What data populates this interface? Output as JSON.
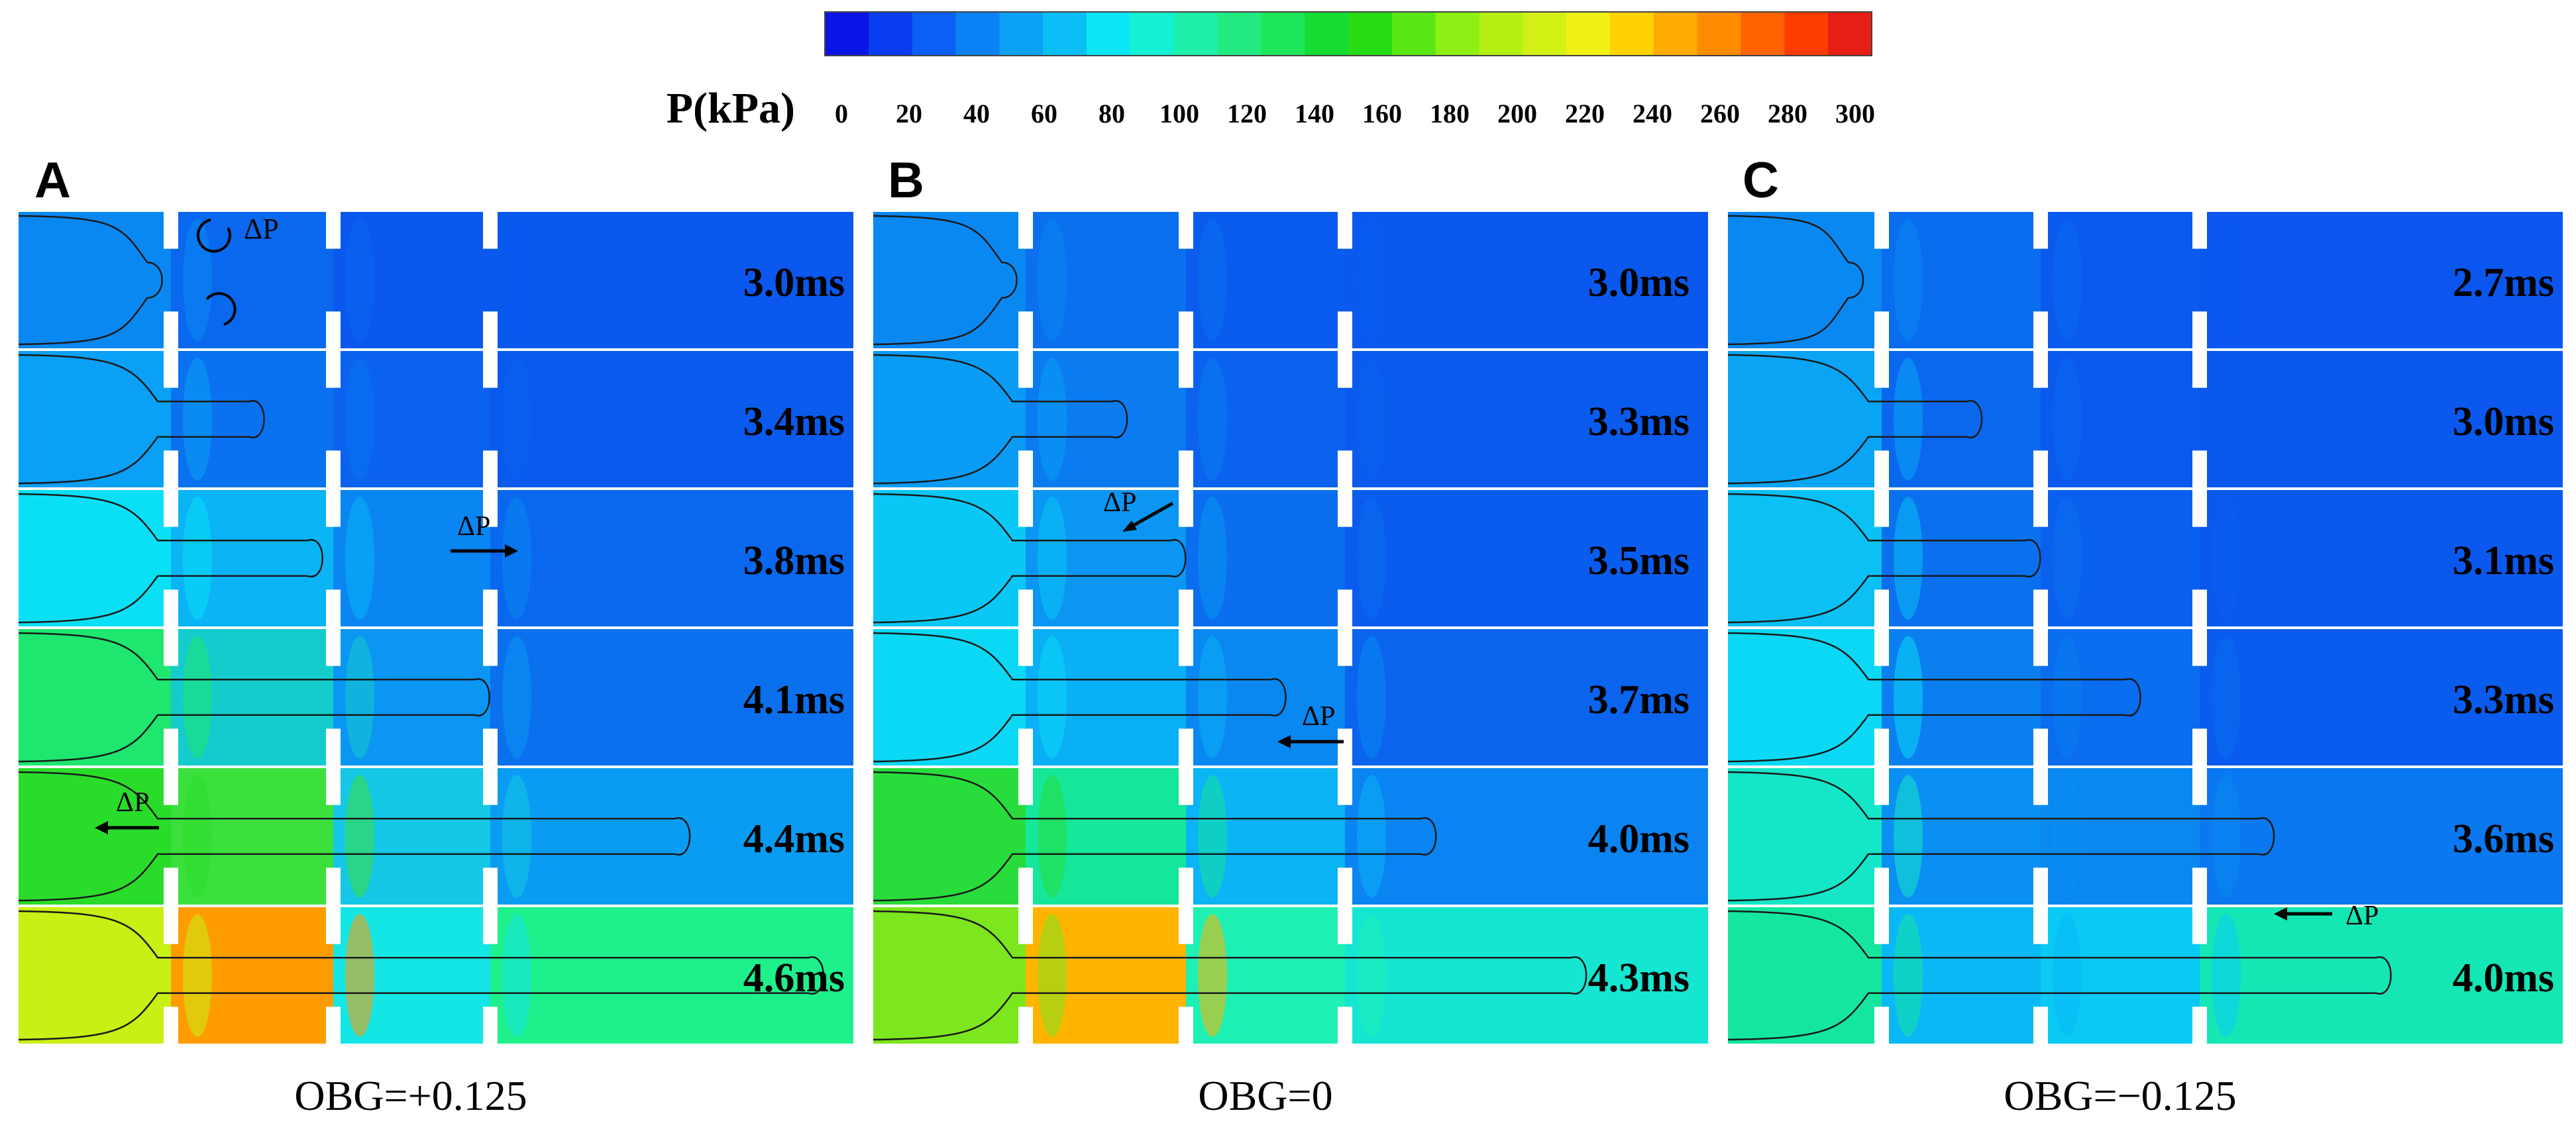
{
  "colorbar": {
    "label": "P(kPa)",
    "ticks": [
      "0",
      "20",
      "40",
      "60",
      "80",
      "100",
      "120",
      "140",
      "160",
      "180",
      "200",
      "220",
      "240",
      "260",
      "280",
      "300"
    ],
    "colors": [
      "#0a14e6",
      "#0a3cf0",
      "#0a5ff5",
      "#0a82f5",
      "#0aa0f5",
      "#0abef5",
      "#0ae6f5",
      "#14f0d2",
      "#1ef0aa",
      "#23eb82",
      "#1ee65a",
      "#14dc32",
      "#28dc14",
      "#5ae614",
      "#8cf014",
      "#b4f014",
      "#d2f014",
      "#f0f014",
      "#ffd200",
      "#ffaa00",
      "#ff8c00",
      "#ff6400",
      "#ff3c00",
      "#e61e14"
    ]
  },
  "panels": [
    {
      "letter": "A",
      "caption": "OBG=+0.125",
      "annotations": [
        "ΔP",
        "ΔP",
        "ΔP"
      ],
      "rows": [
        {
          "time": "3.0ms",
          "colors": [
            "#0a88f2",
            "#0a68ee",
            "#0a58ee",
            "#0a58ee"
          ],
          "jet": 0.17
        },
        {
          "time": "3.4ms",
          "colors": [
            "#0aa0f5",
            "#0a72f0",
            "#0a62ee",
            "#0a5aee"
          ],
          "jet": 0.3
        },
        {
          "time": "3.8ms",
          "colors": [
            "#0ae0f5",
            "#0ab4f5",
            "#0a86f2",
            "#0a68ee"
          ],
          "jet": 0.37
        },
        {
          "time": "4.1ms",
          "colors": [
            "#1ee66e",
            "#14cccc",
            "#0a96f2",
            "#0a70ee"
          ],
          "jet": 0.57
        },
        {
          "time": "4.4ms",
          "colors": [
            "#2adc2a",
            "#3ce03c",
            "#14c8e6",
            "#0a9cf2"
          ],
          "jet": 0.81
        },
        {
          "time": "4.6ms",
          "colors": [
            "#c8f014",
            "#ff9c00",
            "#14e6e6",
            "#1ef08c"
          ],
          "jet": 0.97
        }
      ]
    },
    {
      "letter": "B",
      "caption": "OBG=0",
      "annotations": [
        "ΔP",
        "ΔP"
      ],
      "rows": [
        {
          "time": "3.0ms",
          "colors": [
            "#0a88f2",
            "#0a70ee",
            "#0a5cee",
            "#0a58ee"
          ],
          "jet": 0.17
        },
        {
          "time": "3.3ms",
          "colors": [
            "#0a9cf5",
            "#0a7cf0",
            "#0a62ee",
            "#0a5aee"
          ],
          "jet": 0.31
        },
        {
          "time": "3.5ms",
          "colors": [
            "#0ac8f5",
            "#0a96f2",
            "#0a6eee",
            "#0a5cee"
          ],
          "jet": 0.38
        },
        {
          "time": "3.7ms",
          "colors": [
            "#0ad8f5",
            "#0ab0f5",
            "#0a88f2",
            "#0a64ee"
          ],
          "jet": 0.5
        },
        {
          "time": "4.0ms",
          "colors": [
            "#28dc3c",
            "#14e69a",
            "#0ab4f5",
            "#0a84f2"
          ],
          "jet": 0.68
        },
        {
          "time": "4.3ms",
          "colors": [
            "#7ce61e",
            "#ffb400",
            "#1ef0b4",
            "#14e6d2"
          ],
          "jet": 0.86
        }
      ]
    },
    {
      "letter": "C",
      "caption": "OBG=−0.125",
      "annotations": [
        "ΔP"
      ],
      "rows": [
        {
          "time": "2.7ms",
          "colors": [
            "#0a88f2",
            "#0a6cee",
            "#0a5aee",
            "#0a56ee"
          ],
          "jet": 0.16
        },
        {
          "time": "3.0ms",
          "colors": [
            "#0aa4f5",
            "#0a68ee",
            "#0a5aee",
            "#0a58ee"
          ],
          "jet": 0.31
        },
        {
          "time": "3.1ms",
          "colors": [
            "#0ac0f5",
            "#0a70ee",
            "#0a60ee",
            "#0a58ee"
          ],
          "jet": 0.38
        },
        {
          "time": "3.3ms",
          "colors": [
            "#0ad8f5",
            "#0a80f0",
            "#0a6cee",
            "#0a5cee"
          ],
          "jet": 0.5
        },
        {
          "time": "3.6ms",
          "colors": [
            "#14e6c8",
            "#0a90f2",
            "#0a88f2",
            "#0a78f0"
          ],
          "jet": 0.66
        },
        {
          "time": "4.0ms",
          "colors": [
            "#14e6a0",
            "#0ab8f5",
            "#0acaf5",
            "#14e6b4"
          ],
          "jet": 0.8
        }
      ]
    }
  ]
}
